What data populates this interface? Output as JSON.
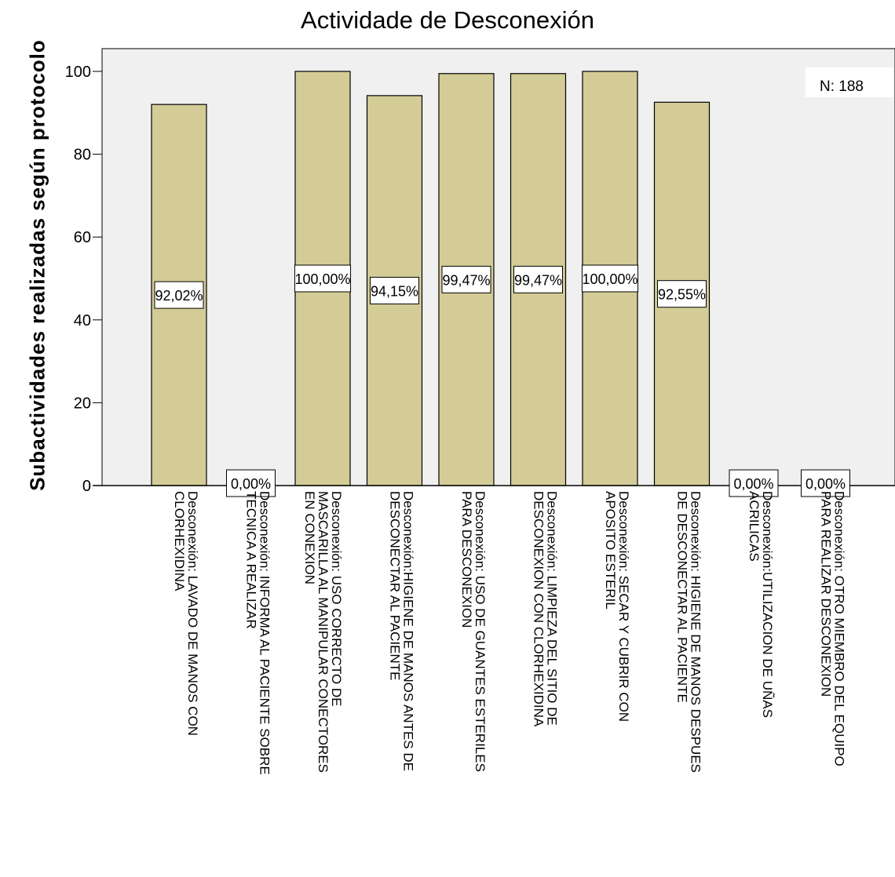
{
  "chart_data": {
    "type": "bar",
    "title": "Actividade de Desconexión",
    "ylabel": "Subactividades realizadas según protocolo",
    "xlabel": "",
    "ylim": [
      0,
      105
    ],
    "yticks": [
      0,
      20,
      40,
      60,
      80,
      100
    ],
    "grid": false,
    "bar_color": "#d3cc96",
    "plot_background": "#f0f0f0",
    "annotation": "N: 188",
    "categories": [
      [
        "Desconexión: LAVADO DE MANOS CON",
        "CLORHEXIDINA"
      ],
      [
        "Desconexión: INFORMA AL PACIENTE SOBRE",
        "TECNICA A REALIZAR"
      ],
      [
        "Desconexión: USO CORRECTO DE",
        "MASCARILLA AL MANIPULAR CONECTORES",
        "EN CONEXION"
      ],
      [
        "Desconexión:HIGIENE DE MANOS ANTES DE",
        "DESCONECTAR AL PACIENTE"
      ],
      [
        "Desconexión: USO DE GUANTES ESTERILES",
        "PARA DESCONEXION"
      ],
      [
        "Desconexión: LIMPIEZA DEL SITIO DE",
        "DESCONEXION CON CLORHEXIDINA"
      ],
      [
        "Desconexión: SECAR Y CUBRIR CON",
        "APOSITO ESTERIL"
      ],
      [
        "Desconexión: HIGIENE DE MANOS DESPUES",
        "DE DESCONECTAR AL PACIENTE"
      ],
      [
        "Desconexión:UTILIZACION DE UÑAS",
        "ACRILICAS"
      ],
      [
        "Desconexión: OTRO MIEMBRO DEL EQUIPO",
        "PARA REALIZAR DESCONEXION"
      ]
    ],
    "values": [
      92.02,
      0.0,
      100.0,
      94.15,
      99.47,
      99.47,
      100.0,
      92.55,
      0.0,
      0.0
    ],
    "data_labels": [
      "92,02%",
      "0,00%",
      "100,00%",
      "94,15%",
      "99,47%",
      "99,47%",
      "100,00%",
      "92,55%",
      "0,00%",
      "0,00%"
    ]
  }
}
